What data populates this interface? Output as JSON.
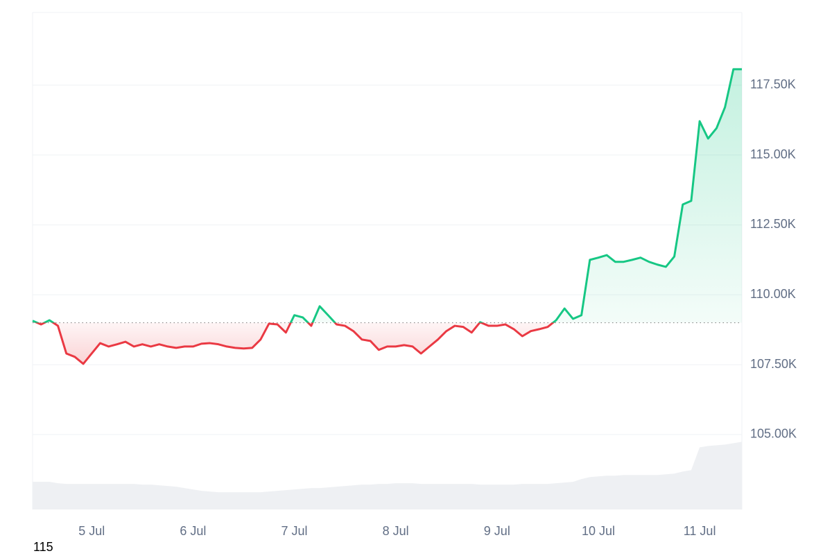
{
  "chart_data": {
    "type": "line",
    "categories": [
      null,
      null,
      null,
      null,
      null,
      null,
      null,
      "5 Jul",
      null,
      null,
      null,
      null,
      null,
      null,
      null,
      null,
      null,
      null,
      null,
      "6 Jul",
      null,
      null,
      null,
      null,
      null,
      null,
      null,
      null,
      null,
      null,
      null,
      "7 Jul",
      null,
      null,
      null,
      null,
      null,
      null,
      null,
      null,
      null,
      null,
      null,
      "8 Jul",
      null,
      null,
      null,
      null,
      null,
      null,
      null,
      null,
      null,
      null,
      null,
      "9 Jul",
      null,
      null,
      null,
      null,
      null,
      null,
      null,
      null,
      null,
      null,
      null,
      "10 Jul",
      null,
      null,
      null,
      null,
      null,
      null,
      null,
      null,
      null,
      null,
      null,
      "11 Jul",
      null,
      null,
      null,
      null,
      null
    ],
    "values": [
      109070,
      108940,
      109090,
      108890,
      107900,
      107780,
      107530,
      107900,
      108270,
      108150,
      108230,
      108320,
      108150,
      108230,
      108150,
      108230,
      108150,
      108100,
      108150,
      108150,
      108250,
      108270,
      108230,
      108150,
      108100,
      108080,
      108100,
      108400,
      108970,
      108940,
      108650,
      109270,
      109190,
      108890,
      109590,
      109270,
      108940,
      108890,
      108700,
      108400,
      108350,
      108030,
      108150,
      108150,
      108200,
      108150,
      107900,
      108150,
      108400,
      108700,
      108890,
      108850,
      108650,
      109020,
      108890,
      108890,
      108940,
      108770,
      108520,
      108700,
      108770,
      108850,
      109090,
      109510,
      109140,
      109270,
      111250,
      111330,
      111420,
      111180,
      111180,
      111250,
      111330,
      111180,
      111080,
      111000,
      111370,
      113230,
      113360,
      116210,
      115590,
      115960,
      116710,
      118070,
      118070
    ],
    "up_color": "#16c784",
    "down_color": "#ea3943",
    "baseline": 109000,
    "ylim": [
      102320,
      120100
    ],
    "yticks": [
      {
        "value": 105000,
        "label": "105.00K"
      },
      {
        "value": 107500,
        "label": "107.50K"
      },
      {
        "value": 110000,
        "label": "110.00K"
      },
      {
        "value": 112500,
        "label": "112.50K"
      },
      {
        "value": 115000,
        "label": "115.00K"
      },
      {
        "value": 117500,
        "label": "117.50K"
      }
    ],
    "grid": true,
    "volume": {
      "color": "#eef0f3",
      "values": [
        40,
        40,
        40,
        38,
        37,
        37,
        37,
        37,
        37,
        37,
        37,
        37,
        37,
        36,
        36,
        35,
        34,
        33,
        31,
        29,
        27,
        26,
        25,
        25,
        25,
        25,
        25,
        25,
        26,
        27,
        28,
        29,
        30,
        31,
        31,
        32,
        33,
        34,
        35,
        36,
        36,
        37,
        37,
        38,
        38,
        38,
        37,
        37,
        37,
        37,
        37,
        37,
        37,
        36,
        36,
        36,
        36,
        36,
        37,
        37,
        37,
        37,
        38,
        39,
        40,
        44,
        47,
        48,
        49,
        49,
        50,
        50,
        50,
        50,
        50,
        51,
        52,
        55,
        57,
        90,
        92,
        93,
        94,
        96,
        98
      ]
    },
    "y2lim": [
      0,
      720
    ],
    "footnote": "115"
  }
}
